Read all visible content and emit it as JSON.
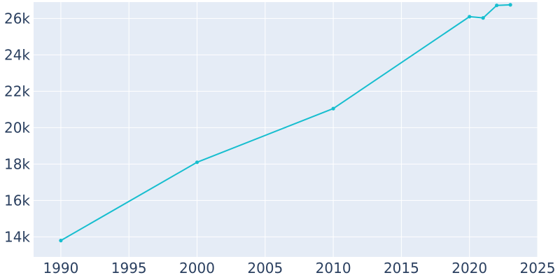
{
  "chart_data": {
    "type": "line",
    "title": "",
    "xlabel": "",
    "ylabel": "",
    "xlim": [
      1988,
      2025
    ],
    "ylim": [
      12900,
      26900
    ],
    "x_ticks": [
      1990,
      1995,
      2000,
      2005,
      2010,
      2015,
      2020,
      2025
    ],
    "x_tick_labels": [
      "1990",
      "1995",
      "2000",
      "2005",
      "2010",
      "2015",
      "2020",
      "2025"
    ],
    "y_ticks": [
      14000,
      16000,
      18000,
      20000,
      22000,
      24000,
      26000
    ],
    "y_tick_labels": [
      "14k",
      "16k",
      "18k",
      "20k",
      "22k",
      "24k",
      "26k"
    ],
    "grid": true,
    "legend": "none",
    "series": [
      {
        "color": "#17becf",
        "x": [
          1990,
          2000,
          2010,
          2020,
          2021,
          2022,
          2023
        ],
        "y": [
          13800,
          18100,
          21050,
          26100,
          26030,
          26720,
          26750
        ]
      }
    ],
    "colors": {
      "plot_background": "#e5ecf6",
      "grid": "#ffffff",
      "tick_text": "#2a3f5f"
    }
  }
}
